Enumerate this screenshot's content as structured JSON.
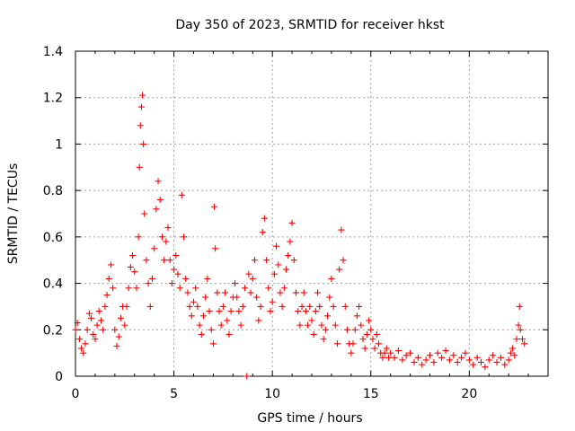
{
  "chart_data": {
    "type": "scatter",
    "title": "Day 350 of 2023, SRMTID for receiver hkst",
    "xlabel": "GPS time / hours",
    "ylabel": "SRMTID / TECUs",
    "xlim": [
      0,
      24
    ],
    "ylim": [
      0,
      1.4
    ],
    "xticks": [
      0,
      5,
      10,
      15,
      20
    ],
    "xtick_labels": [
      "0",
      "5",
      "10",
      "15",
      "20"
    ],
    "yticks": [
      0,
      0.2,
      0.4,
      0.6,
      0.8,
      1.0,
      1.2,
      1.4
    ],
    "ytick_labels": [
      "0",
      "0.2",
      "0.4",
      "0.6",
      "0.8",
      "1",
      "1.2",
      "1.4"
    ],
    "grid": true,
    "marker": "plus",
    "series": [
      {
        "name": "SRMTID",
        "color": "#ff0000",
        "points": [
          [
            0.0,
            0.2
          ],
          [
            0.1,
            0.23
          ],
          [
            0.2,
            0.16
          ],
          [
            0.3,
            0.12
          ],
          [
            0.4,
            0.1
          ],
          [
            0.5,
            0.14
          ],
          [
            0.6,
            0.2
          ],
          [
            0.7,
            0.27
          ],
          [
            0.8,
            0.25
          ],
          [
            0.9,
            0.18
          ],
          [
            1.0,
            0.16
          ],
          [
            1.1,
            0.22
          ],
          [
            1.2,
            0.28
          ],
          [
            1.3,
            0.24
          ],
          [
            1.4,
            0.2
          ],
          [
            1.5,
            0.3
          ],
          [
            1.6,
            0.35
          ],
          [
            1.7,
            0.42
          ],
          [
            1.8,
            0.48
          ],
          [
            1.9,
            0.38
          ],
          [
            2.0,
            0.2
          ],
          [
            2.1,
            0.13
          ],
          [
            2.2,
            0.17
          ],
          [
            2.3,
            0.25
          ],
          [
            2.4,
            0.3
          ],
          [
            2.5,
            0.22
          ],
          [
            2.6,
            0.3
          ],
          [
            2.7,
            0.38
          ],
          [
            2.8,
            0.47
          ],
          [
            2.9,
            0.52
          ],
          [
            3.0,
            0.45
          ],
          [
            3.1,
            0.38
          ],
          [
            3.2,
            0.6
          ],
          [
            3.25,
            0.9
          ],
          [
            3.3,
            1.08
          ],
          [
            3.35,
            1.16
          ],
          [
            3.4,
            1.21
          ],
          [
            3.45,
            1.0
          ],
          [
            3.5,
            0.7
          ],
          [
            3.6,
            0.5
          ],
          [
            3.7,
            0.4
          ],
          [
            3.8,
            0.3
          ],
          [
            3.9,
            0.42
          ],
          [
            4.0,
            0.55
          ],
          [
            4.1,
            0.72
          ],
          [
            4.2,
            0.84
          ],
          [
            4.3,
            0.76
          ],
          [
            4.4,
            0.6
          ],
          [
            4.5,
            0.5
          ],
          [
            4.6,
            0.58
          ],
          [
            4.7,
            0.64
          ],
          [
            4.8,
            0.5
          ],
          [
            4.9,
            0.4
          ],
          [
            5.0,
            0.46
          ],
          [
            5.1,
            0.52
          ],
          [
            5.2,
            0.44
          ],
          [
            5.3,
            0.38
          ],
          [
            5.4,
            0.78
          ],
          [
            5.5,
            0.6
          ],
          [
            5.6,
            0.42
          ],
          [
            5.7,
            0.36
          ],
          [
            5.8,
            0.3
          ],
          [
            5.9,
            0.26
          ],
          [
            6.0,
            0.32
          ],
          [
            6.1,
            0.38
          ],
          [
            6.2,
            0.3
          ],
          [
            6.3,
            0.22
          ],
          [
            6.4,
            0.18
          ],
          [
            6.5,
            0.26
          ],
          [
            6.6,
            0.34
          ],
          [
            6.7,
            0.42
          ],
          [
            6.8,
            0.28
          ],
          [
            6.9,
            0.2
          ],
          [
            7.0,
            0.14
          ],
          [
            7.05,
            0.73
          ],
          [
            7.1,
            0.55
          ],
          [
            7.2,
            0.36
          ],
          [
            7.3,
            0.28
          ],
          [
            7.4,
            0.22
          ],
          [
            7.5,
            0.3
          ],
          [
            7.6,
            0.36
          ],
          [
            7.7,
            0.24
          ],
          [
            7.8,
            0.18
          ],
          [
            7.9,
            0.28
          ],
          [
            8.0,
            0.34
          ],
          [
            8.1,
            0.4
          ],
          [
            8.2,
            0.34
          ],
          [
            8.3,
            0.28
          ],
          [
            8.4,
            0.22
          ],
          [
            8.5,
            0.3
          ],
          [
            8.6,
            0.38
          ],
          [
            8.7,
            0.0
          ],
          [
            8.8,
            0.44
          ],
          [
            8.9,
            0.36
          ],
          [
            9.0,
            0.42
          ],
          [
            9.1,
            0.5
          ],
          [
            9.2,
            0.34
          ],
          [
            9.3,
            0.24
          ],
          [
            9.4,
            0.3
          ],
          [
            9.5,
            0.62
          ],
          [
            9.6,
            0.68
          ],
          [
            9.7,
            0.5
          ],
          [
            9.8,
            0.38
          ],
          [
            9.9,
            0.28
          ],
          [
            10.0,
            0.32
          ],
          [
            10.1,
            0.44
          ],
          [
            10.2,
            0.56
          ],
          [
            10.3,
            0.48
          ],
          [
            10.4,
            0.36
          ],
          [
            10.5,
            0.3
          ],
          [
            10.6,
            0.38
          ],
          [
            10.7,
            0.46
          ],
          [
            10.8,
            0.52
          ],
          [
            10.9,
            0.58
          ],
          [
            11.0,
            0.66
          ],
          [
            11.1,
            0.5
          ],
          [
            11.2,
            0.36
          ],
          [
            11.3,
            0.28
          ],
          [
            11.4,
            0.22
          ],
          [
            11.5,
            0.3
          ],
          [
            11.6,
            0.36
          ],
          [
            11.7,
            0.28
          ],
          [
            11.8,
            0.22
          ],
          [
            11.9,
            0.3
          ],
          [
            12.0,
            0.24
          ],
          [
            12.1,
            0.18
          ],
          [
            12.2,
            0.28
          ],
          [
            12.3,
            0.36
          ],
          [
            12.4,
            0.3
          ],
          [
            12.5,
            0.22
          ],
          [
            12.6,
            0.16
          ],
          [
            12.7,
            0.2
          ],
          [
            12.8,
            0.26
          ],
          [
            12.9,
            0.34
          ],
          [
            13.0,
            0.42
          ],
          [
            13.1,
            0.3
          ],
          [
            13.2,
            0.22
          ],
          [
            13.3,
            0.14
          ],
          [
            13.4,
            0.46
          ],
          [
            13.5,
            0.63
          ],
          [
            13.6,
            0.5
          ],
          [
            13.7,
            0.3
          ],
          [
            13.8,
            0.2
          ],
          [
            13.9,
            0.14
          ],
          [
            14.0,
            0.1
          ],
          [
            14.1,
            0.14
          ],
          [
            14.2,
            0.2
          ],
          [
            14.3,
            0.26
          ],
          [
            14.4,
            0.3
          ],
          [
            14.5,
            0.22
          ],
          [
            14.6,
            0.16
          ],
          [
            14.7,
            0.12
          ],
          [
            14.8,
            0.18
          ],
          [
            14.9,
            0.24
          ],
          [
            15.0,
            0.2
          ],
          [
            15.1,
            0.16
          ],
          [
            15.2,
            0.12
          ],
          [
            15.3,
            0.18
          ],
          [
            15.4,
            0.14
          ],
          [
            15.5,
            0.1
          ],
          [
            15.6,
            0.08
          ],
          [
            15.7,
            0.1
          ],
          [
            15.8,
            0.12
          ],
          [
            15.9,
            0.08
          ],
          [
            16.0,
            0.1
          ],
          [
            16.2,
            0.08
          ],
          [
            16.4,
            0.11
          ],
          [
            16.6,
            0.07
          ],
          [
            16.8,
            0.09
          ],
          [
            17.0,
            0.1
          ],
          [
            17.2,
            0.06
          ],
          [
            17.4,
            0.08
          ],
          [
            17.6,
            0.05
          ],
          [
            17.8,
            0.07
          ],
          [
            18.0,
            0.09
          ],
          [
            18.2,
            0.06
          ],
          [
            18.4,
            0.1
          ],
          [
            18.6,
            0.08
          ],
          [
            18.8,
            0.11
          ],
          [
            19.0,
            0.07
          ],
          [
            19.2,
            0.09
          ],
          [
            19.4,
            0.06
          ],
          [
            19.6,
            0.08
          ],
          [
            19.8,
            0.1
          ],
          [
            20.0,
            0.07
          ],
          [
            20.2,
            0.05
          ],
          [
            20.4,
            0.08
          ],
          [
            20.6,
            0.06
          ],
          [
            20.8,
            0.04
          ],
          [
            21.0,
            0.07
          ],
          [
            21.2,
            0.09
          ],
          [
            21.4,
            0.06
          ],
          [
            21.6,
            0.08
          ],
          [
            21.8,
            0.05
          ],
          [
            22.0,
            0.07
          ],
          [
            22.1,
            0.1
          ],
          [
            22.2,
            0.12
          ],
          [
            22.3,
            0.09
          ],
          [
            22.4,
            0.16
          ],
          [
            22.5,
            0.22
          ],
          [
            22.55,
            0.3
          ],
          [
            22.6,
            0.2
          ],
          [
            22.7,
            0.16
          ],
          [
            22.8,
            0.14
          ]
        ]
      }
    ]
  }
}
